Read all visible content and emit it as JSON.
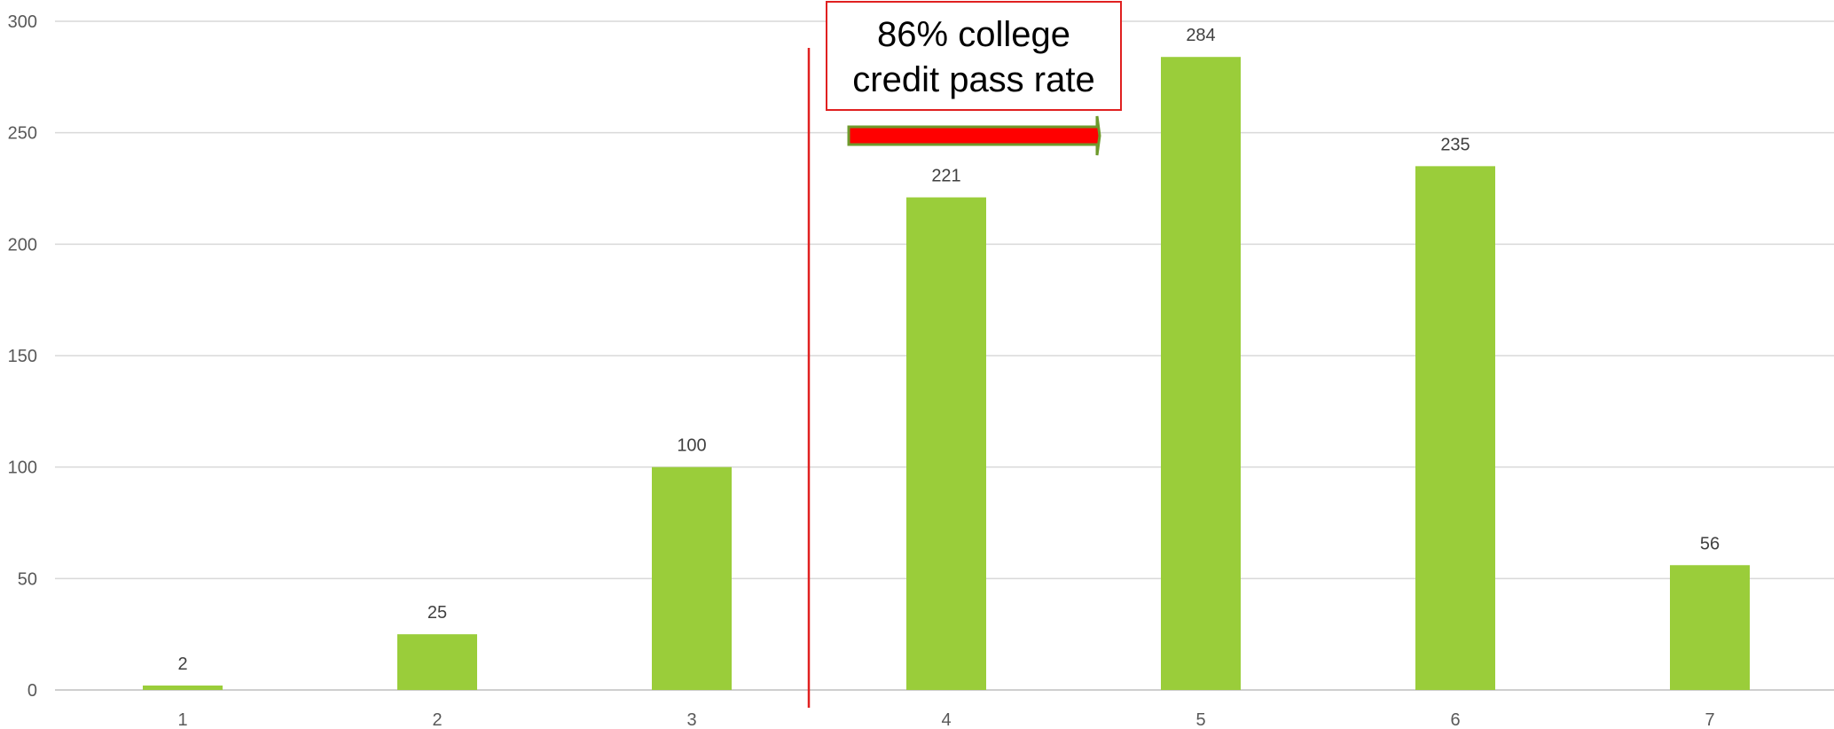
{
  "chart_data": {
    "type": "bar",
    "categories": [
      "1",
      "2",
      "3",
      "4",
      "5",
      "6",
      "7"
    ],
    "values": [
      2,
      25,
      100,
      221,
      284,
      235,
      56
    ],
    "ylim": [
      0,
      300
    ],
    "yticks": [
      0,
      50,
      100,
      150,
      200,
      250,
      300
    ],
    "grid": true,
    "legend": "none",
    "bar_color": "#9ACD3A",
    "annotations": {
      "callout_lines": [
        "86% college",
        "credit pass rate"
      ],
      "divider_between": [
        "3",
        "4"
      ],
      "divider_color": "#E02020",
      "arrow_color": "#FF0000",
      "arrow_outline": "#6E9A2C",
      "box_border": "#E02020"
    }
  }
}
